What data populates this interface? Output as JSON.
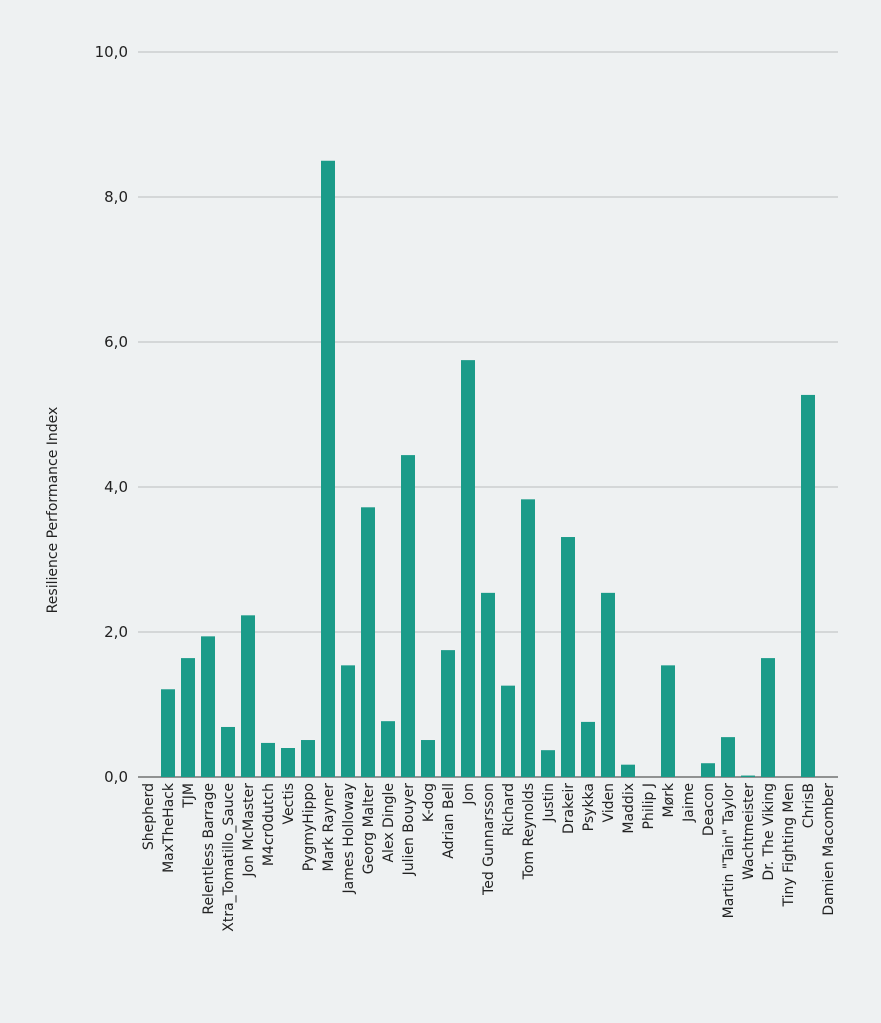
{
  "chart_data": {
    "type": "bar",
    "title": "",
    "xlabel": "",
    "ylabel": "Resilience Performance Index",
    "ylim": [
      0,
      10
    ],
    "yticks": [
      0,
      2,
      4,
      6,
      8,
      10
    ],
    "ytick_labels": [
      "0,0",
      "2,0",
      "4,0",
      "6,0",
      "8,0",
      "10,0"
    ],
    "grid": true,
    "bar_color": "#1b9b89",
    "categories": [
      "Shepherd",
      "MaxTheHack",
      "TJM",
      "Relentless Barrage",
      "Xtra_Tomatillo_Sauce",
      "Jon McMaster",
      "M4cr0dutch",
      "Vectis",
      "PygmyHippo",
      "Mark Rayner",
      "James Holloway",
      "Georg Malter",
      "Alex Dingle",
      "Julien Bouyer",
      "K-dog",
      "Adrian Bell",
      "Jon",
      "Ted Gunnarsson",
      "Richard",
      "Tom Reynolds",
      "Justin",
      "Drakeir",
      "Psykka",
      "Viden",
      "Maddix",
      "Philip J",
      "Mørk",
      "Jaime",
      "Deacon",
      "Martin \"Tain\" Taylor",
      "Wachtmeister",
      "Dr. The Viking",
      "Tiny Fighting Men",
      "ChrisB",
      "Damien Macomber"
    ],
    "values": [
      0,
      1.21,
      1.64,
      1.94,
      0.69,
      2.23,
      0.47,
      0.4,
      0.51,
      8.5,
      1.54,
      3.72,
      0.77,
      4.44,
      0.51,
      1.75,
      5.75,
      2.54,
      1.26,
      3.83,
      0.37,
      3.31,
      0.76,
      2.54,
      0.17,
      0,
      1.54,
      0,
      0.19,
      0.55,
      0.02,
      1.64,
      0,
      5.27,
      0
    ]
  }
}
